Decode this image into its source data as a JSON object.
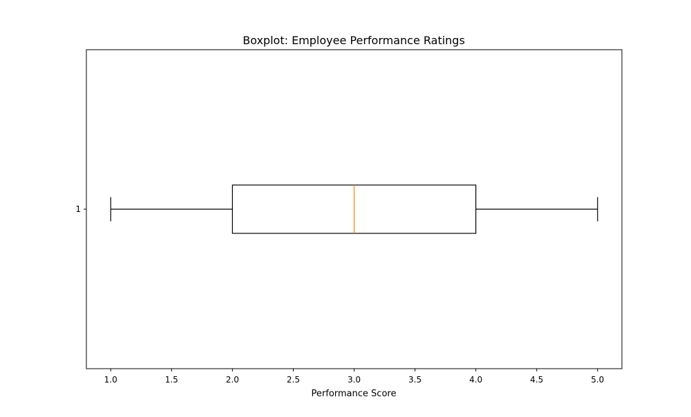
{
  "chart_data": {
    "type": "boxplot",
    "orientation": "horizontal",
    "title": "Boxplot: Employee Performance Ratings",
    "xlabel": "Performance Score",
    "ylabel": "",
    "xlim": [
      0.8,
      5.2
    ],
    "x_ticks": [
      1.0,
      1.5,
      2.0,
      2.5,
      3.0,
      3.5,
      4.0,
      4.5,
      5.0
    ],
    "x_tick_labels": [
      "1.0",
      "1.5",
      "2.0",
      "2.5",
      "3.0",
      "3.5",
      "4.0",
      "4.5",
      "5.0"
    ],
    "y_tick_labels": [
      "1"
    ],
    "grid": false,
    "series": [
      {
        "category": "1",
        "whisker_low": 1.0,
        "q1": 2.0,
        "median": 3.0,
        "q3": 4.0,
        "whisker_high": 5.0
      }
    ],
    "colors": {
      "box": "#000000",
      "median": "#ff7f0e",
      "axes": "#000000",
      "background": "#ffffff"
    }
  }
}
